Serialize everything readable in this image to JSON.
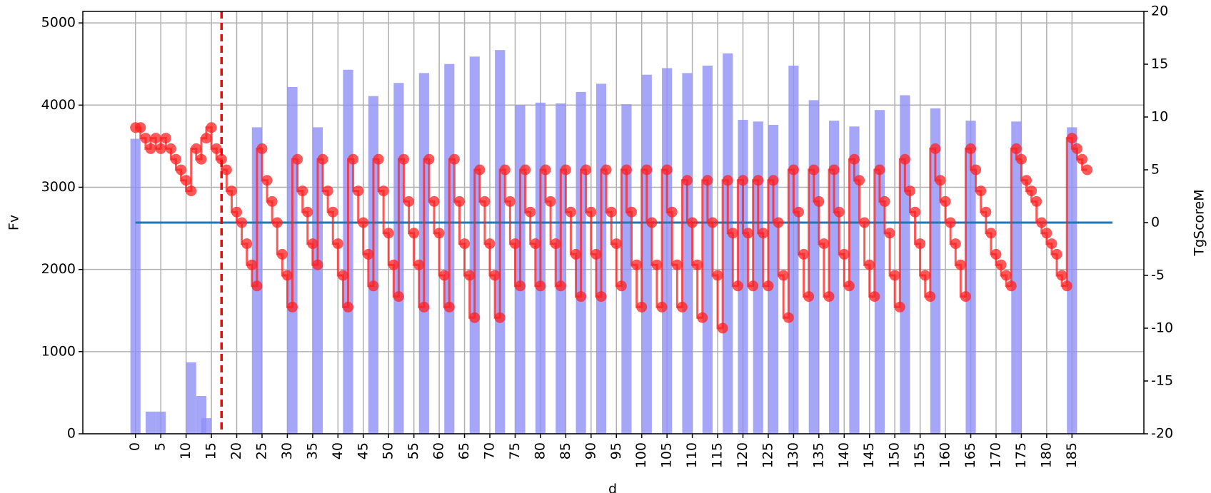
{
  "chart_data": {
    "type": "bar",
    "xlabel": "d",
    "ylabel": "Fv",
    "y2label": "TgScoreM",
    "xlim": [
      -10.4,
      199.2
    ],
    "ylim": [
      0,
      5140
    ],
    "y2lim": [
      -20,
      20
    ],
    "xticks": [
      0,
      5,
      10,
      15,
      20,
      25,
      30,
      35,
      40,
      45,
      50,
      55,
      60,
      65,
      70,
      75,
      80,
      85,
      90,
      95,
      100,
      105,
      110,
      115,
      120,
      125,
      130,
      135,
      140,
      145,
      150,
      155,
      160,
      165,
      170,
      175,
      180,
      185
    ],
    "yticks": [
      0,
      1000,
      2000,
      3000,
      4000,
      5000
    ],
    "y2ticks": [
      -20,
      -15,
      -10,
      -5,
      0,
      5,
      10,
      15,
      20
    ],
    "grid": true,
    "vline": {
      "x": 17,
      "color": "#ff0000"
    },
    "series": [
      {
        "kind": "bar",
        "color": "#9090f8",
        "x": [
          0,
          3,
          5,
          11,
          13,
          14,
          24,
          31,
          36,
          42,
          47,
          52,
          57,
          62,
          67,
          72,
          76,
          80,
          84,
          88,
          92,
          97,
          101,
          105,
          109,
          113,
          117,
          120,
          123,
          126,
          130,
          134,
          138,
          142,
          147,
          152,
          158,
          165,
          174,
          185
        ],
        "values": [
          3590,
          270,
          270,
          870,
          460,
          190,
          3730,
          4220,
          3730,
          4430,
          4110,
          4270,
          4390,
          4500,
          4590,
          4670,
          4000,
          4030,
          4020,
          4160,
          4260,
          4010,
          4370,
          4450,
          4390,
          4480,
          4630,
          3820,
          3800,
          3760,
          4480,
          4060,
          3810,
          3740,
          3940,
          4120,
          3960,
          3810,
          3800,
          3730
        ]
      },
      {
        "kind": "line",
        "axis": "y2",
        "color": "#1f77b4",
        "x": [
          0,
          193
        ],
        "values": [
          0,
          0
        ]
      },
      {
        "kind": "steps",
        "axis": "y2",
        "color": "#ff2020",
        "x": [
          0,
          1,
          2,
          3,
          4,
          5,
          6,
          7,
          8,
          9,
          10,
          11,
          12,
          13,
          14,
          15,
          16,
          17,
          18,
          19,
          20,
          21,
          22,
          23,
          24,
          25,
          26,
          27,
          28,
          29,
          30,
          31,
          32,
          33,
          34,
          35,
          36,
          37,
          38,
          39,
          40,
          41,
          42,
          43,
          44,
          45,
          46,
          47,
          48,
          49,
          50,
          51,
          52,
          53,
          54,
          55,
          56,
          57,
          58,
          59,
          60,
          61,
          62,
          63,
          64,
          65,
          66,
          67,
          68,
          69,
          70,
          71,
          72,
          73,
          74,
          75,
          76,
          77,
          78,
          79,
          80,
          81,
          82,
          83,
          84,
          85,
          86,
          87,
          88,
          89,
          90,
          91,
          92,
          93,
          94,
          95,
          96,
          97,
          98,
          99,
          100,
          101,
          102,
          103,
          104,
          105,
          106,
          107,
          108,
          109,
          110,
          111,
          112,
          113,
          114,
          115,
          116,
          117,
          118,
          119,
          120,
          121,
          122,
          123,
          124,
          125,
          126,
          127,
          128,
          129,
          130,
          131,
          132,
          133,
          134,
          135,
          136,
          137,
          138,
          139,
          140,
          141,
          142,
          143,
          144,
          145,
          146,
          147,
          148,
          149,
          150,
          151,
          152,
          153,
          154,
          155,
          156,
          157,
          158,
          159,
          160,
          161,
          162,
          163,
          164,
          165,
          166,
          167,
          168,
          169,
          170,
          171,
          172,
          173,
          174,
          175,
          176,
          177,
          178,
          179,
          180,
          181,
          182,
          183,
          184,
          185,
          186,
          187,
          188
        ],
        "values": [
          9,
          9,
          8,
          7,
          8,
          7,
          8,
          7,
          6,
          5,
          4,
          3,
          7,
          6,
          8,
          9,
          7,
          6,
          5,
          3,
          1,
          0,
          -2,
          -4,
          -6,
          7,
          4,
          2,
          0,
          -3,
          -5,
          -8,
          6,
          3,
          1,
          -2,
          -4,
          6,
          3,
          1,
          -2,
          -5,
          -8,
          6,
          3,
          0,
          -3,
          -6,
          6,
          3,
          -1,
          -4,
          -7,
          6,
          2,
          -1,
          -4,
          -8,
          6,
          2,
          -1,
          -5,
          -8,
          6,
          2,
          -2,
          -5,
          -9,
          5,
          2,
          -2,
          -5,
          -9,
          5,
          2,
          -2,
          -6,
          5,
          1,
          -2,
          -6,
          5,
          2,
          -2,
          -6,
          5,
          1,
          -3,
          -7,
          5,
          1,
          -3,
          -7,
          5,
          1,
          -2,
          -6,
          5,
          1,
          -4,
          -8,
          5,
          0,
          -4,
          -8,
          5,
          1,
          -4,
          -8,
          4,
          0,
          -4,
          -9,
          4,
          0,
          -5,
          -10,
          4,
          -1,
          -6,
          4,
          -1,
          -6,
          4,
          -1,
          -6,
          4,
          0,
          -5,
          -9,
          5,
          1,
          -3,
          -7,
          5,
          2,
          -2,
          -7,
          5,
          1,
          -3,
          -6,
          6,
          4,
          0,
          -4,
          -7,
          5,
          2,
          -1,
          -5,
          -8,
          6,
          3,
          1,
          -2,
          -5,
          -7,
          7,
          4,
          2,
          0,
          -2,
          -4,
          -7,
          7,
          5,
          3,
          1,
          -1,
          -3,
          -4,
          -5,
          -6,
          7,
          6,
          4,
          3,
          2,
          0,
          -1,
          -2,
          -3,
          -5,
          -6,
          8,
          7,
          6,
          5
        ]
      }
    ]
  }
}
